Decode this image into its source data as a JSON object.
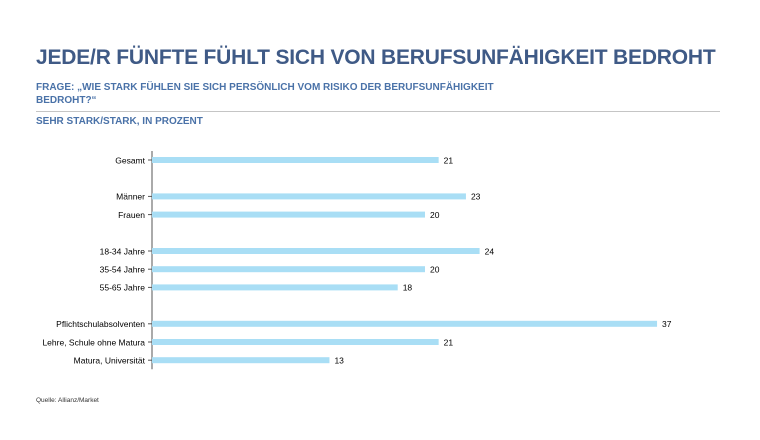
{
  "header": {
    "title": "JEDE/R FÜNFTE FÜHLT SICH VON BERUFSUNFÄHIGKEIT BEDROHT",
    "subtitle": "FRAGE: „WIE STARK FÜHLEN SIE SICH PERSÖNLICH VOM RISIKO DER BERUFSUNFÄHIGKEIT BEDROHT?“",
    "unit_label": "SEHR STARK/STARK, IN PROZENT"
  },
  "footer": {
    "source": "Quelle: Allianz/Market"
  },
  "colors": {
    "title": "#3f5a86",
    "subtitle": "#4a72a8",
    "bar": "#a9def5",
    "axis": "#555555",
    "rule": "#c5c5c5"
  },
  "chart_data": {
    "type": "bar",
    "orientation": "horizontal",
    "title": "JEDE/R FÜNFTE FÜHLT SICH VON BERUFSUNFÄHIGKEIT BEDROHT",
    "xlabel": "",
    "ylabel": "",
    "xlim": [
      0,
      37
    ],
    "grid": false,
    "groups": [
      {
        "categories": [
          "Gesamt"
        ],
        "values": [
          21
        ]
      },
      {
        "categories": [
          "Männer",
          "Frauen"
        ],
        "values": [
          23,
          20
        ]
      },
      {
        "categories": [
          "18-34 Jahre",
          "35-54 Jahre",
          "55-65 Jahre"
        ],
        "values": [
          24,
          20,
          18
        ]
      },
      {
        "categories": [
          "Pflichtschulabsolventen",
          "Lehre, Schule ohne Matura",
          "Matura, Universität"
        ],
        "values": [
          37,
          21,
          13
        ]
      }
    ]
  }
}
